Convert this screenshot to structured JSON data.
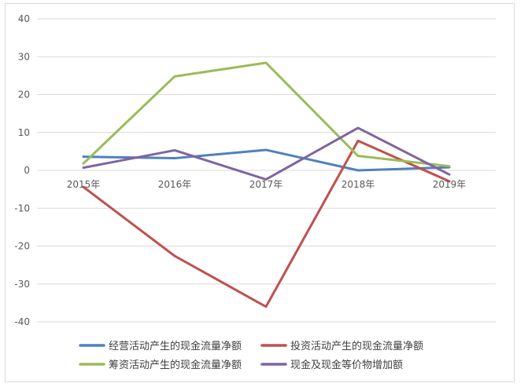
{
  "chart_data": {
    "type": "line",
    "categories": [
      "2015年",
      "2016年",
      "2017年",
      "2018年",
      "2019年"
    ],
    "ylim": [
      -40,
      40
    ],
    "yticks": [
      -40,
      -30,
      -20,
      -10,
      0,
      10,
      20,
      30,
      40
    ],
    "ytick_labels": [
      "-40",
      "-30",
      "-20",
      "-10",
      "0",
      "10",
      "20",
      "30",
      "40"
    ],
    "grid": true,
    "legend_position": "bottom",
    "series": [
      {
        "name": "经营活动产生的现金流量净额",
        "color": "#4f81bd",
        "values": [
          3.6,
          3.2,
          5.4,
          0.0,
          0.8
        ]
      },
      {
        "name": "投资活动产生的现金流量净额",
        "color": "#c0504d",
        "values": [
          -4.4,
          -22.6,
          -36.0,
          7.8,
          -2.9
        ]
      },
      {
        "name": "筹资活动产生的现金流量净额",
        "color": "#9bbb59",
        "values": [
          1.8,
          24.8,
          28.4,
          3.8,
          1.1
        ]
      },
      {
        "name": "现金及现金等价物增加额",
        "color": "#8064a2",
        "values": [
          0.7,
          5.3,
          -2.4,
          11.2,
          -1.1
        ]
      }
    ]
  }
}
